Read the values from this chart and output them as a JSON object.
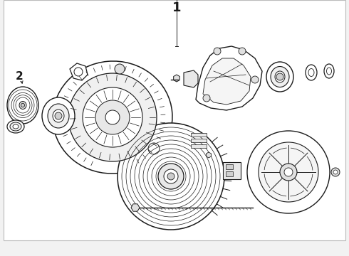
{
  "bg_color": "#f2f2f2",
  "diagram_bg": "#ffffff",
  "lc": "#1a1a1a",
  "lc_light": "#555555",
  "border_color": "#bbbbbb",
  "label_1": "1",
  "label_2": "2",
  "figsize": [
    4.9,
    3.6
  ],
  "dpi": 100,
  "xlim": [
    0,
    490
  ],
  "ylim": [
    0,
    360
  ],
  "border": [
    5,
    22,
    480,
    338
  ]
}
